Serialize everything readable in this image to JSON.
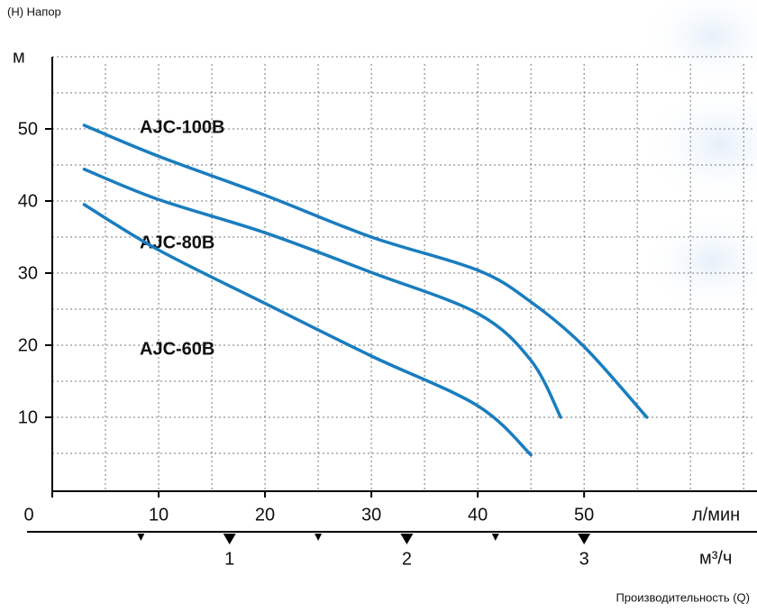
{
  "chart_data": {
    "type": "line",
    "title": "(H) Напор",
    "y_label": "м",
    "x_label": "л/мин",
    "x2_label": "м³/ч",
    "footer": "Производительность (Q)",
    "xlim": [
      0,
      66
    ],
    "xticks": [
      0,
      10,
      20,
      30,
      40,
      50
    ],
    "ylim": [
      0,
      60
    ],
    "yticks": [
      10,
      20,
      30,
      40,
      50
    ],
    "xgrid": [
      5,
      10,
      15,
      20,
      25,
      30,
      35,
      40,
      45,
      50,
      55,
      60,
      65
    ],
    "ygrid": [
      5,
      10,
      15,
      20,
      25,
      30,
      35,
      40,
      45,
      50,
      55,
      60
    ],
    "x2lim": [
      0,
      3.96
    ],
    "x2ticks": [
      1,
      2,
      3
    ],
    "x2minor": [
      0.5,
      1.5,
      2.5
    ],
    "grid": true,
    "series": [
      {
        "name": "AJC-100B",
        "color": "#1a7dbf",
        "x": [
          3,
          10,
          20,
          30,
          40,
          45,
          50,
          55.9
        ],
        "values": [
          50.5,
          46.2,
          40.8,
          35,
          30.4,
          26,
          19.8,
          10
        ]
      },
      {
        "name": "AJC-80B",
        "color": "#1a7dbf",
        "x": [
          3,
          10,
          20,
          30,
          40,
          45,
          47.8
        ],
        "values": [
          44.4,
          40.2,
          35.6,
          30.1,
          24.4,
          17.9,
          10
        ]
      },
      {
        "name": "AJC-60B",
        "color": "#1a7dbf",
        "x": [
          3,
          10,
          20,
          30,
          40,
          45
        ],
        "values": [
          39.5,
          33.2,
          25.8,
          18.5,
          11.6,
          4.8
        ]
      }
    ]
  }
}
